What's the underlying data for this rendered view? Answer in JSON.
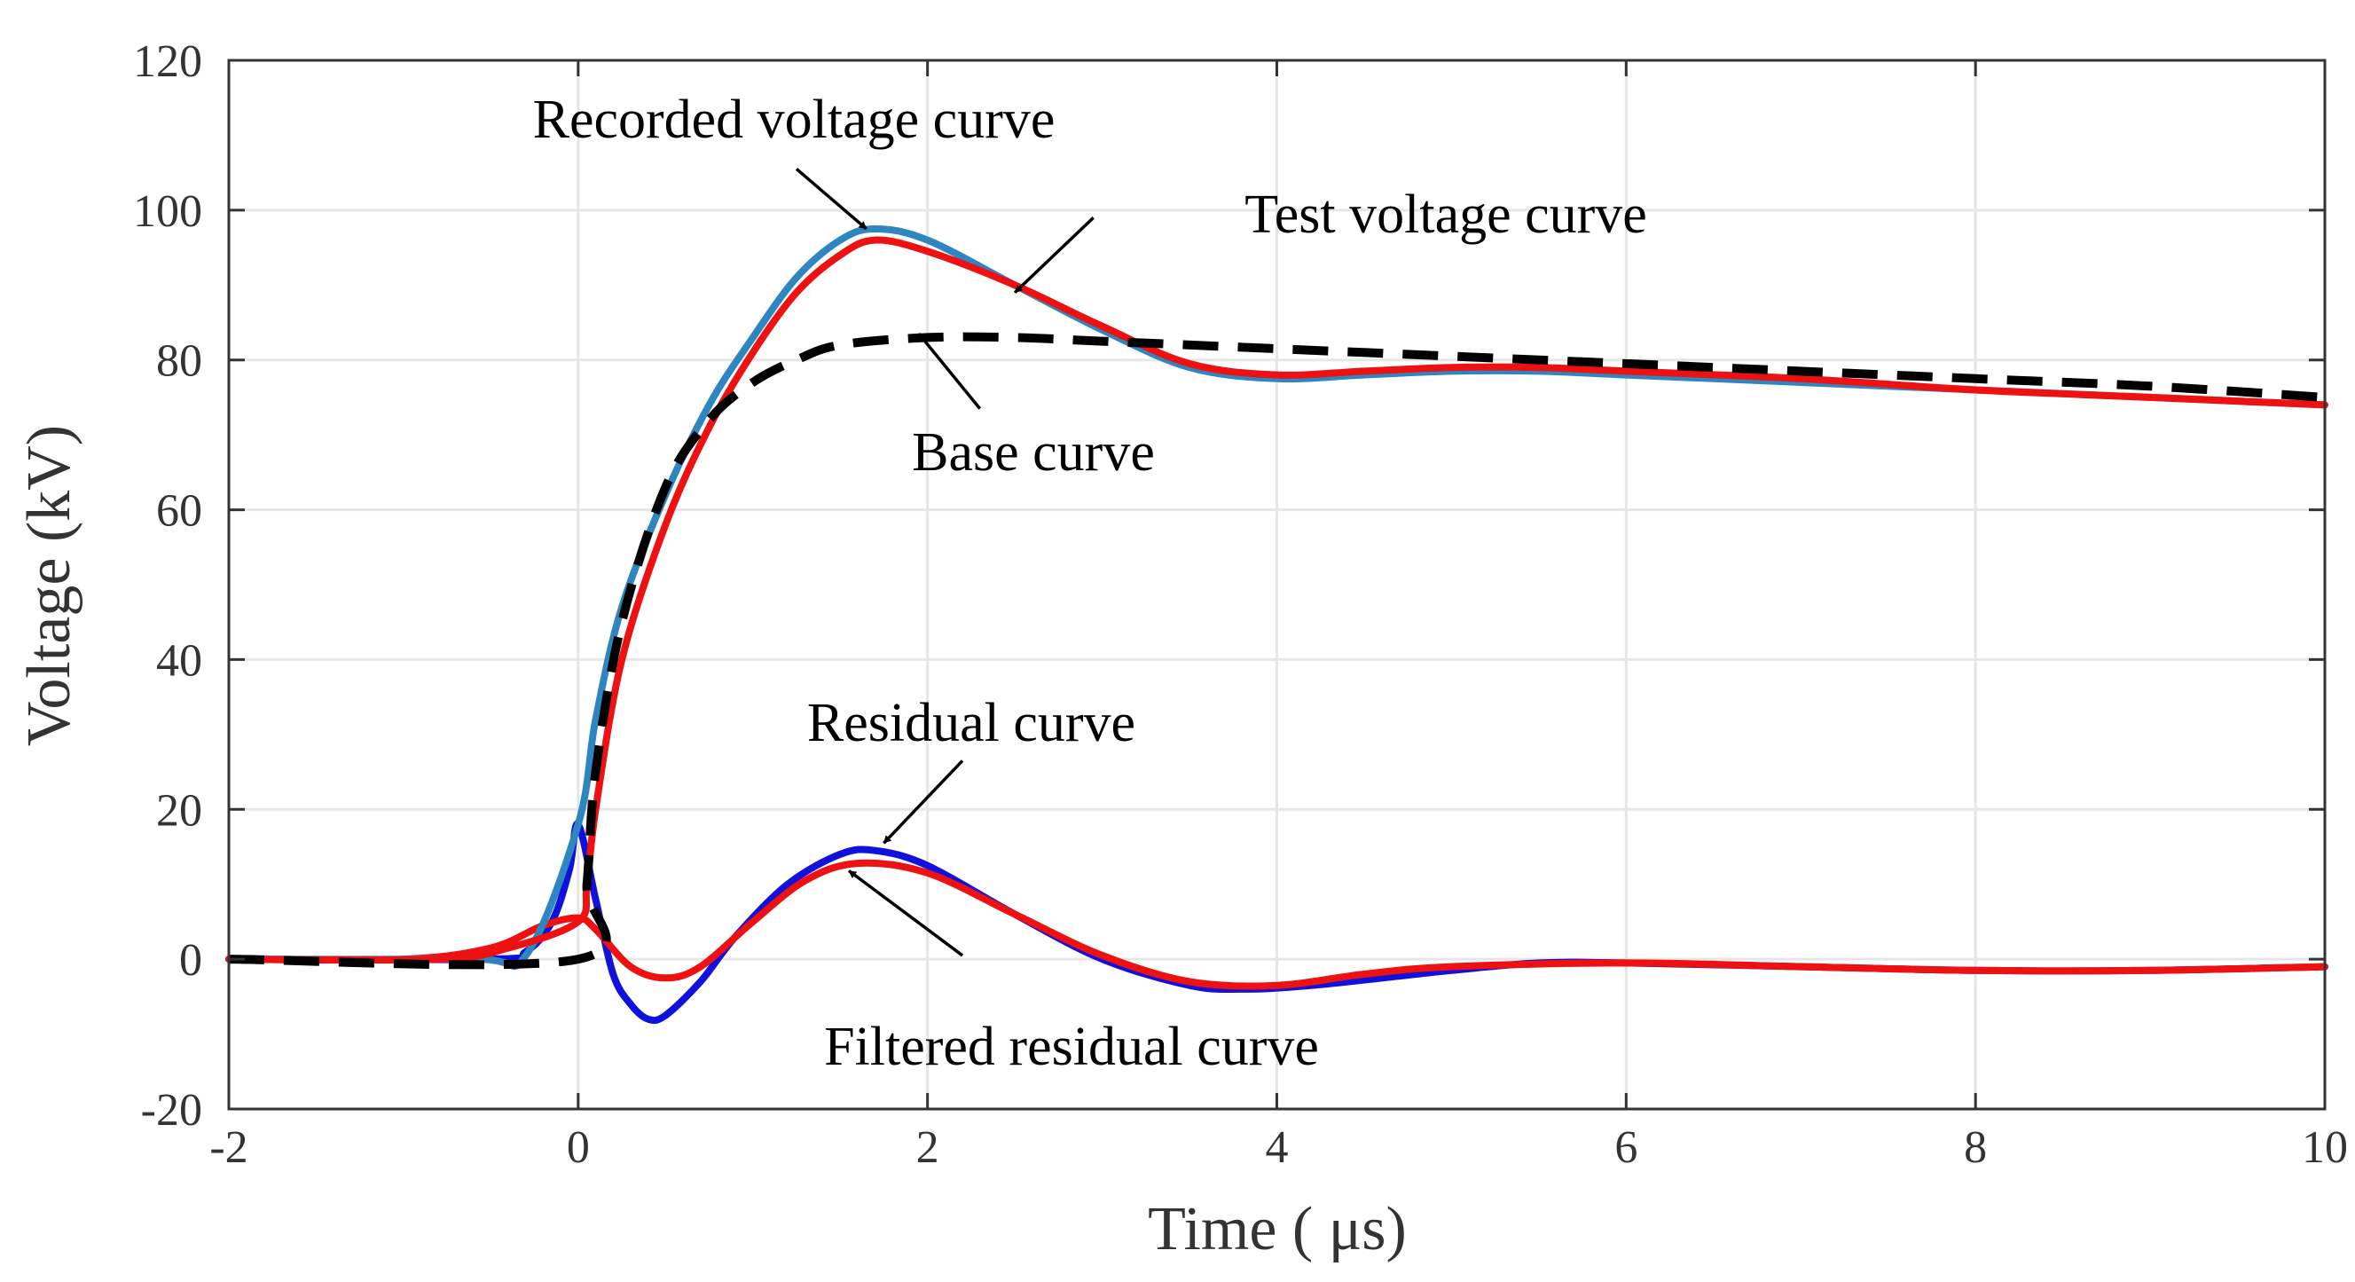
{
  "chart_data": {
    "type": "line",
    "title": "",
    "xlabel": "Time ( μs)",
    "ylabel": "Voltage (kV)",
    "xlim": [
      -2,
      10
    ],
    "ylim": [
      -20,
      120
    ],
    "xticks": [
      -2,
      0,
      2,
      4,
      6,
      8,
      10
    ],
    "yticks": [
      -20,
      0,
      20,
      40,
      60,
      80,
      100,
      120
    ],
    "grid": true,
    "series": [
      {
        "name": "Recorded voltage curve",
        "color": "#2e86c1",
        "style": "solid",
        "points": [
          [
            -2,
            0
          ],
          [
            -0.6,
            0
          ],
          [
            -0.3,
            0.5
          ],
          [
            0,
            18
          ],
          [
            0.1,
            32
          ],
          [
            0.25,
            47
          ],
          [
            0.5,
            62
          ],
          [
            0.75,
            74
          ],
          [
            1.0,
            83
          ],
          [
            1.25,
            91
          ],
          [
            1.5,
            96
          ],
          [
            1.7,
            97.5
          ],
          [
            2.0,
            96
          ],
          [
            2.5,
            90
          ],
          [
            3.0,
            84
          ],
          [
            3.5,
            79
          ],
          [
            4.0,
            77.5
          ],
          [
            4.5,
            78
          ],
          [
            5.0,
            78.5
          ],
          [
            5.5,
            78.5
          ],
          [
            6.0,
            78
          ],
          [
            7.0,
            77
          ],
          [
            8.0,
            76
          ],
          [
            9.0,
            75
          ],
          [
            10.0,
            74
          ]
        ]
      },
      {
        "name": "Test voltage curve",
        "color": "#ee1111",
        "style": "solid",
        "points": [
          [
            -2,
            0
          ],
          [
            -0.8,
            0
          ],
          [
            -0.4,
            1.5
          ],
          [
            0,
            5
          ],
          [
            0.05,
            10
          ],
          [
            0.1,
            20
          ],
          [
            0.25,
            40
          ],
          [
            0.5,
            58
          ],
          [
            0.75,
            71
          ],
          [
            1.0,
            81
          ],
          [
            1.25,
            89
          ],
          [
            1.5,
            94
          ],
          [
            1.7,
            96
          ],
          [
            2.0,
            94.5
          ],
          [
            2.5,
            90
          ],
          [
            3.0,
            84.5
          ],
          [
            3.5,
            79.5
          ],
          [
            4.0,
            78
          ],
          [
            4.5,
            78.5
          ],
          [
            5.0,
            79
          ],
          [
            5.5,
            79
          ],
          [
            6.0,
            78.5
          ],
          [
            7.0,
            77.5
          ],
          [
            8.0,
            76
          ],
          [
            9.0,
            75
          ],
          [
            10.0,
            74
          ]
        ]
      },
      {
        "name": "Base curve",
        "color": "#000000",
        "style": "dashed",
        "points": [
          [
            -2,
            0
          ],
          [
            0.0,
            0
          ],
          [
            0.05,
            10
          ],
          [
            0.1,
            25
          ],
          [
            0.25,
            45
          ],
          [
            0.5,
            63
          ],
          [
            0.75,
            72
          ],
          [
            1.0,
            77
          ],
          [
            1.25,
            80
          ],
          [
            1.5,
            82
          ],
          [
            2.0,
            83
          ],
          [
            2.5,
            83
          ],
          [
            3.0,
            82.5
          ],
          [
            4.0,
            81.5
          ],
          [
            5.0,
            80.5
          ],
          [
            6.0,
            79.5
          ],
          [
            7.0,
            78.5
          ],
          [
            8.0,
            77.5
          ],
          [
            9.0,
            76.5
          ],
          [
            10.0,
            75
          ]
        ]
      },
      {
        "name": "Residual curve",
        "color": "#1111dd",
        "style": "solid",
        "points": [
          [
            -2,
            0
          ],
          [
            -0.5,
            0
          ],
          [
            -0.3,
            1
          ],
          [
            -0.15,
            5
          ],
          [
            -0.05,
            12
          ],
          [
            0.0,
            18
          ],
          [
            0.1,
            8
          ],
          [
            0.2,
            -2
          ],
          [
            0.3,
            -6
          ],
          [
            0.4,
            -8
          ],
          [
            0.5,
            -7.5
          ],
          [
            0.7,
            -3
          ],
          [
            0.9,
            3
          ],
          [
            1.2,
            10
          ],
          [
            1.5,
            14
          ],
          [
            1.7,
            14.5
          ],
          [
            2.0,
            12.5
          ],
          [
            2.5,
            6
          ],
          [
            3.0,
            0
          ],
          [
            3.5,
            -3.5
          ],
          [
            3.8,
            -4
          ],
          [
            4.2,
            -3.5
          ],
          [
            5.0,
            -1.5
          ],
          [
            5.5,
            -0.5
          ],
          [
            6.0,
            -0.5
          ],
          [
            7.0,
            -1
          ],
          [
            8.0,
            -1.5
          ],
          [
            9.0,
            -1.5
          ],
          [
            10.0,
            -1
          ]
        ]
      },
      {
        "name": "Filtered residual curve",
        "color": "#ee1111",
        "style": "solid",
        "points": [
          [
            -2,
            0
          ],
          [
            -1.0,
            0
          ],
          [
            -0.5,
            1.5
          ],
          [
            -0.2,
            4.5
          ],
          [
            0.0,
            5.5
          ],
          [
            0.1,
            4
          ],
          [
            0.3,
            -1
          ],
          [
            0.5,
            -2.5
          ],
          [
            0.7,
            -1
          ],
          [
            1.0,
            5
          ],
          [
            1.3,
            10.5
          ],
          [
            1.6,
            12.8
          ],
          [
            2.0,
            11.5
          ],
          [
            2.5,
            6
          ],
          [
            3.0,
            0.5
          ],
          [
            3.5,
            -3
          ],
          [
            4.0,
            -3.5
          ],
          [
            4.5,
            -2
          ],
          [
            5.0,
            -1
          ],
          [
            6.0,
            -0.5
          ],
          [
            7.0,
            -1
          ],
          [
            8.0,
            -1.5
          ],
          [
            9.0,
            -1.5
          ],
          [
            10.0,
            -1
          ]
        ]
      }
    ],
    "annotations": [
      {
        "text": "Recorded voltage curve",
        "target": "Recorded voltage curve",
        "tip": [
          1.65,
          97.5
        ],
        "tail": [
          1.25,
          105.5
        ]
      },
      {
        "text": "Test voltage curve",
        "target": "Test voltage curve",
        "tip": [
          2.5,
          89
        ],
        "tail": [
          2.95,
          99
        ]
      },
      {
        "text": "Base curve",
        "target": "Base curve",
        "tip": [
          1.95,
          83.5
        ],
        "tail": [
          2.3,
          73.5
        ]
      },
      {
        "text": "Residual curve",
        "target": "Residual curve",
        "tip": [
          1.75,
          15.5
        ],
        "tail": [
          2.2,
          26.5
        ]
      },
      {
        "text": "Filtered residual curve",
        "target": "Filtered residual curve",
        "tip": [
          1.55,
          11.8
        ],
        "tail": [
          2.2,
          0.5
        ]
      }
    ]
  }
}
